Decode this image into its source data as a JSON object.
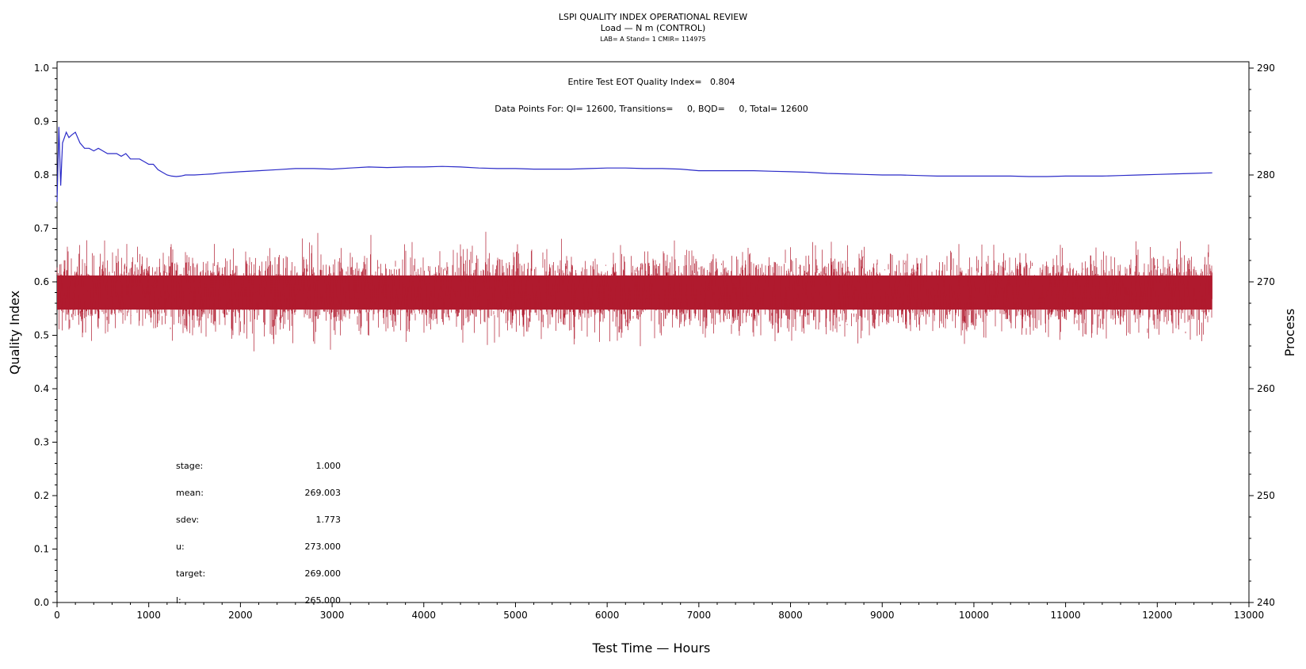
{
  "chart_data": {
    "type": "line",
    "title": "LSPI QUALITY INDEX OPERATIONAL REVIEW",
    "subtitle": "Load — N m (CONTROL)",
    "subtitle2": "LAB= A Stand= 1 CMIR= 114975",
    "annotations": {
      "eot": "Entire Test EOT Quality Index=   0.804",
      "points": "Data Points For: QI= 12600, Transitions=     0, BQD=     0, Total= 12600"
    },
    "xlabel": "Test Time — Hours",
    "ylabel": "Quality Index",
    "y2label": "Process",
    "xlim": [
      0,
      13000
    ],
    "ylim": [
      0.0,
      1.0
    ],
    "y2lim": [
      240,
      290
    ],
    "x_ticks": [
      "0",
      "1000",
      "2000",
      "3000",
      "4000",
      "5000",
      "6000",
      "7000",
      "8000",
      "9000",
      "10000",
      "11000",
      "12000",
      "13000"
    ],
    "y_ticks": [
      "0.0",
      "0.1",
      "0.2",
      "0.3",
      "0.4",
      "0.5",
      "0.6",
      "0.7",
      "0.8",
      "0.9",
      "1.0"
    ],
    "y2_ticks": [
      "240",
      "250",
      "260",
      "270",
      "280",
      "290"
    ],
    "series": [
      {
        "axis": "left",
        "color": "#2b2bc8",
        "x": [
          0,
          20,
          40,
          60,
          80,
          100,
          130,
          160,
          200,
          250,
          300,
          350,
          400,
          450,
          500,
          550,
          600,
          650,
          700,
          750,
          800,
          850,
          900,
          950,
          1000,
          1050,
          1100,
          1150,
          1200,
          1250,
          1300,
          1350,
          1400,
          1500,
          1600,
          1700,
          1800,
          1900,
          2000,
          2200,
          2400,
          2600,
          2800,
          3000,
          3200,
          3400,
          3600,
          3800,
          4000,
          4200,
          4400,
          4600,
          4800,
          5000,
          5200,
          5400,
          5600,
          5800,
          6000,
          6200,
          6400,
          6600,
          6800,
          7000,
          7200,
          7400,
          7600,
          7800,
          8000,
          8200,
          8400,
          8600,
          8800,
          9000,
          9200,
          9400,
          9600,
          9800,
          10000,
          10200,
          10400,
          10600,
          10800,
          11000,
          11200,
          11400,
          11600,
          11800,
          12000,
          12200,
          12400,
          12600
        ],
        "y": [
          0.75,
          0.89,
          0.78,
          0.86,
          0.87,
          0.88,
          0.87,
          0.875,
          0.88,
          0.86,
          0.85,
          0.85,
          0.845,
          0.85,
          0.845,
          0.84,
          0.84,
          0.84,
          0.835,
          0.84,
          0.83,
          0.83,
          0.83,
          0.825,
          0.82,
          0.82,
          0.81,
          0.805,
          0.8,
          0.798,
          0.797,
          0.798,
          0.8,
          0.8,
          0.801,
          0.802,
          0.804,
          0.805,
          0.806,
          0.808,
          0.81,
          0.812,
          0.812,
          0.811,
          0.813,
          0.815,
          0.814,
          0.815,
          0.815,
          0.816,
          0.815,
          0.813,
          0.812,
          0.812,
          0.811,
          0.811,
          0.811,
          0.812,
          0.813,
          0.813,
          0.812,
          0.812,
          0.811,
          0.808,
          0.808,
          0.808,
          0.808,
          0.807,
          0.806,
          0.805,
          0.803,
          0.802,
          0.801,
          0.8,
          0.8,
          0.799,
          0.798,
          0.798,
          0.798,
          0.798,
          0.798,
          0.797,
          0.797,
          0.798,
          0.798,
          0.798,
          0.799,
          0.8,
          0.801,
          0.802,
          0.803,
          0.804
        ]
      },
      {
        "axis": "right",
        "color": "#b01a2e",
        "x_range": [
          0,
          12600
        ],
        "mean": 269.003,
        "sdev": 1.773,
        "min": 263.5,
        "max": 275.5
      }
    ],
    "stats_labels": [
      "stage:",
      "mean:",
      "sdev:",
      "u:",
      "target:",
      "l:"
    ],
    "stats_values": [
      "1.000",
      "269.003",
      "1.773",
      "273.000",
      "269.000",
      "265.000"
    ]
  }
}
